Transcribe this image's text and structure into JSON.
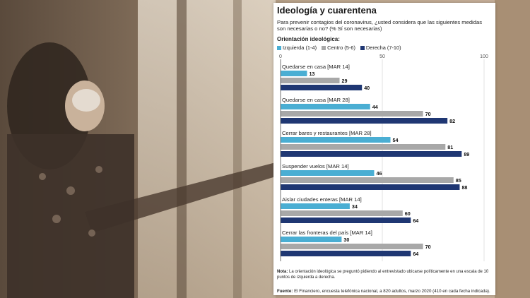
{
  "title": "Ideología y cuarentena",
  "subtitle": "Para prevenir contagios del coronavirus, ¿usted considera que las siguientes medidas son necesarias o no? (% Sí son necesarias)",
  "legend_title": "Orientación ideológica:",
  "note_label": "Nota:",
  "note_text": "La orientación ideológica se preguntó pidiendo al entrevistado ubicarse políticamente en una escala de 10 puntos de izquierda a derecha.",
  "source_label": "Fuente:",
  "source_text": "El Financiero, encuesta telefónica nacional, a 820 adultos, marzo 2020 (410 en cada fecha indicada).",
  "colors": {
    "izquierda": "#4aaed3",
    "centro": "#a8a8a8",
    "derecha": "#1f3773"
  },
  "chart_data": {
    "type": "bar",
    "orientation": "horizontal",
    "xlim": [
      0,
      100
    ],
    "ticks": [
      "0",
      "50",
      "100"
    ],
    "grid": true,
    "legend_position": "top-left",
    "categories": [
      "Quedarse en casa  [MAR 14]",
      "Quedarse en casa [MAR 28]",
      "Cerrar bares y restaurantes [MAR 28]",
      "Suspender vuelos  [MAR 14]",
      "Aislar ciudades enteras [MAR 14]",
      "Cerrar las fronteras del país [MAR 14]"
    ],
    "series": [
      {
        "name": "Izquierda (1-4)",
        "values": [
          13,
          44,
          54,
          46,
          34,
          30
        ]
      },
      {
        "name": "Centro (5-6)",
        "values": [
          29,
          70,
          81,
          85,
          60,
          70
        ]
      },
      {
        "name": "Derecha (7-10)",
        "values": [
          40,
          82,
          89,
          88,
          64,
          64
        ]
      }
    ]
  }
}
